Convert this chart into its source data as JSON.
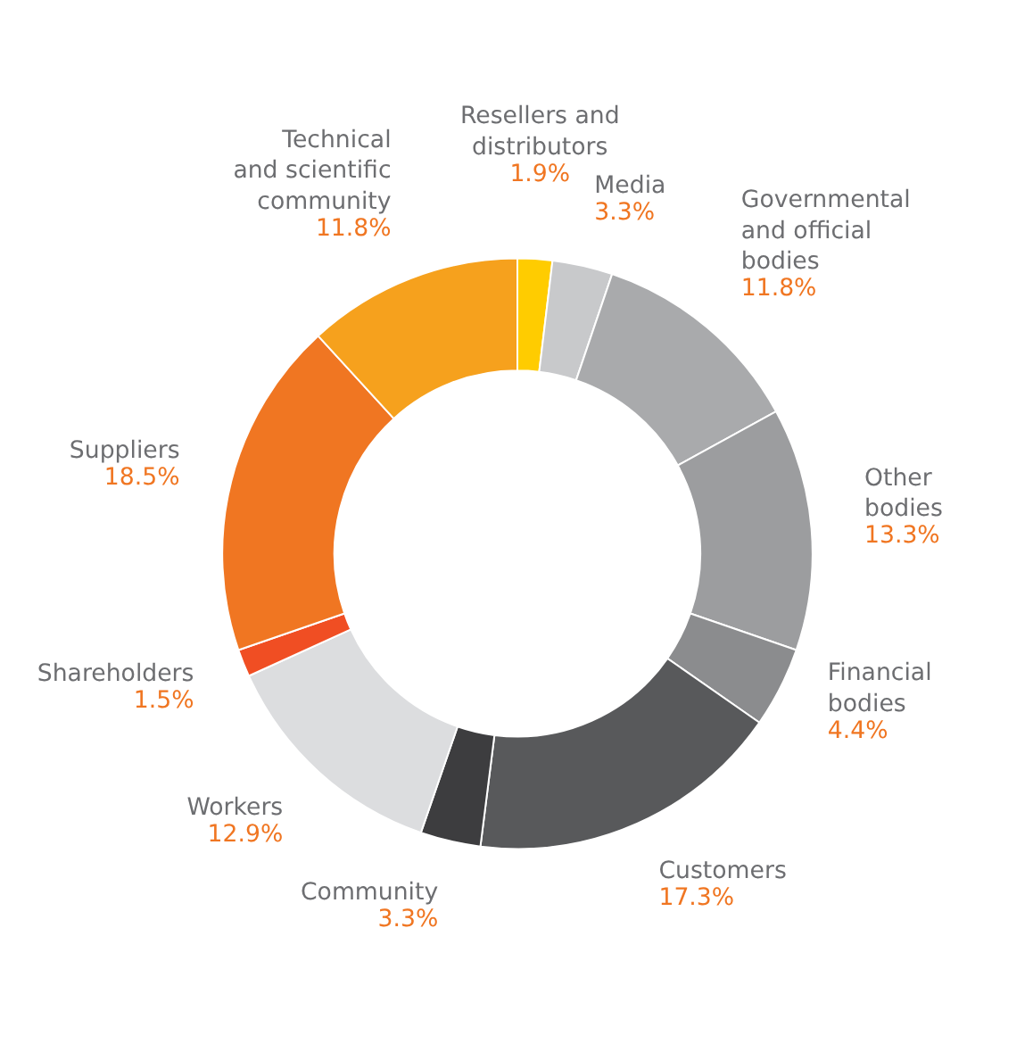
{
  "chart_data": {
    "type": "donut",
    "categories": [
      "Resellers and\ndistributors",
      "Media",
      "Governmental\nand official\nbodies",
      "Other\nbodies",
      "Financial\nbodies",
      "Customers",
      "Community",
      "Workers",
      "Shareholders",
      "Suppliers",
      "Technical\nand scientific\ncommunity"
    ],
    "values": [
      1.9,
      3.3,
      11.8,
      13.3,
      4.4,
      17.3,
      3.3,
      12.9,
      1.5,
      18.5,
      11.8
    ],
    "value_labels": [
      "1.9%",
      "3.3%",
      "11.8%",
      "13.3%",
      "4.4%",
      "17.3%",
      "3.3%",
      "12.9%",
      "1.5%",
      "18.5%",
      "11.8%"
    ],
    "colors": [
      "#ffcc00",
      "#c8c9cb",
      "#a9aaac",
      "#9c9d9f",
      "#8b8c8e",
      "#58595b",
      "#3d3d3f",
      "#dcdddf",
      "#f04e23",
      "#f07622",
      "#f6a11d"
    ]
  }
}
